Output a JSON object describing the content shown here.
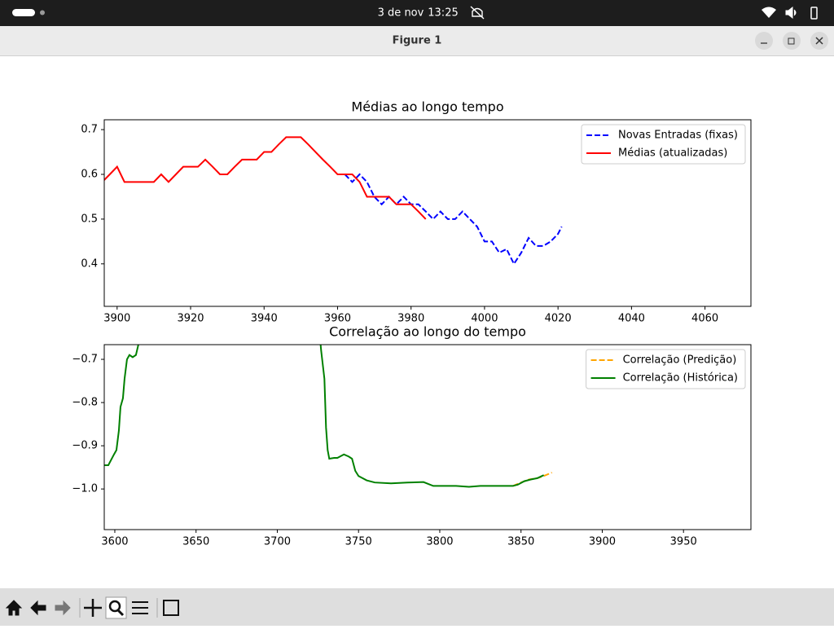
{
  "screen": {
    "topbar": {
      "date": "3 de nov",
      "time": "13:25"
    },
    "window": {
      "title": "Figure 1"
    }
  },
  "chart_data": [
    {
      "type": "line",
      "title": "Médias ao longo tempo",
      "xlim": [
        3896.5,
        4072.5
      ],
      "xticks": [
        3900,
        3920,
        3940,
        3960,
        3980,
        4000,
        4020,
        4040,
        4060
      ],
      "ylim": [
        0.305,
        0.722
      ],
      "yticks": [
        0.4,
        0.5,
        0.6,
        0.7
      ],
      "legend": "upper right",
      "series": [
        {
          "name": "Novas Entradas (fixas)",
          "color": "#0000ff",
          "linestyle": "dashed",
          "x": [
            3962,
            3964,
            3966,
            3968,
            3970,
            3972,
            3974,
            3976,
            3978,
            3980,
            3982,
            3984,
            3986,
            3988,
            3990,
            3992,
            3994,
            3996,
            3998,
            4000,
            4002,
            4004,
            4006,
            4008,
            4010,
            4012,
            4014,
            4016,
            4018,
            4020,
            4021
          ],
          "values": [
            0.6,
            0.583,
            0.6,
            0.583,
            0.55,
            0.533,
            0.55,
            0.533,
            0.55,
            0.533,
            0.533,
            0.517,
            0.5,
            0.517,
            0.5,
            0.5,
            0.517,
            0.5,
            0.483,
            0.45,
            0.45,
            0.425,
            0.433,
            0.4,
            0.425,
            0.458,
            0.44,
            0.44,
            0.45,
            0.467,
            0.483
          ]
        },
        {
          "name": "Médias (atualizadas)",
          "color": "#ff0000",
          "linestyle": "solid",
          "x": [
            3896,
            3898,
            3900,
            3902,
            3904,
            3906,
            3908,
            3910,
            3912,
            3914,
            3916,
            3918,
            3920,
            3922,
            3924,
            3926,
            3928,
            3930,
            3932,
            3934,
            3936,
            3938,
            3940,
            3942,
            3944,
            3946,
            3948,
            3950,
            3952,
            3954,
            3956,
            3958,
            3960,
            3962,
            3964,
            3966,
            3968,
            3970,
            3972,
            3974,
            3976,
            3978,
            3980,
            3982,
            3984
          ],
          "values": [
            0.583,
            0.6,
            0.617,
            0.583,
            0.583,
            0.583,
            0.583,
            0.583,
            0.6,
            0.583,
            0.6,
            0.617,
            0.617,
            0.617,
            0.633,
            0.617,
            0.6,
            0.6,
            0.617,
            0.633,
            0.633,
            0.633,
            0.65,
            0.65,
            0.667,
            0.683,
            0.683,
            0.683,
            0.667,
            0.65,
            0.633,
            0.617,
            0.6,
            0.6,
            0.6,
            0.583,
            0.55,
            0.55,
            0.55,
            0.55,
            0.533,
            0.533,
            0.533,
            0.517,
            0.5
          ]
        }
      ]
    },
    {
      "type": "line",
      "title": "Correlação ao longo do tempo",
      "xlim": [
        3593.5,
        3991.5
      ],
      "xticks": [
        3600,
        3650,
        3700,
        3750,
        3800,
        3850,
        3900,
        3950
      ],
      "ylim": [
        -1.094,
        -0.666
      ],
      "yticks": [
        {
          "value": -1.0,
          "label": "−1.0"
        },
        {
          "value": -0.9,
          "label": "−0.9"
        },
        {
          "value": -0.8,
          "label": "−0.8"
        },
        {
          "value": -0.7,
          "label": "−0.7"
        }
      ],
      "legend": "upper right",
      "series": [
        {
          "name": "Correlação (Predição)",
          "color": "#ffa500",
          "linestyle": "dashed",
          "x": [
            3845,
            3850,
            3855,
            3860,
            3864,
            3869
          ],
          "values": [
            -0.993,
            -0.985,
            -0.978,
            -0.975,
            -0.97,
            -0.962
          ]
        },
        {
          "name": "Correlação (Histórica)",
          "color": "#008000",
          "linestyle": "solid",
          "x": [
            3593.5,
            3596,
            3599.5,
            3601,
            3602.5,
            3603.5,
            3605,
            3606,
            3607.5,
            3609,
            3611,
            3613,
            3614.5,
            3616,
            3725,
            3727,
            3729,
            3730,
            3731,
            3732,
            3735,
            3737,
            3741,
            3744,
            3746,
            3748,
            3750,
            3755,
            3760,
            3770,
            3780,
            3790,
            3796,
            3800,
            3810,
            3818,
            3825,
            3830,
            3840,
            3845,
            3848,
            3852,
            3856,
            3860,
            3864
          ],
          "values": [
            -0.945,
            -0.945,
            -0.92,
            -0.91,
            -0.865,
            -0.81,
            -0.79,
            -0.745,
            -0.7,
            -0.69,
            -0.695,
            -0.69,
            -0.666,
            -0.6,
            -0.6,
            -0.68,
            -0.745,
            -0.858,
            -0.91,
            -0.93,
            -0.928,
            -0.928,
            -0.92,
            -0.925,
            -0.93,
            -0.958,
            -0.97,
            -0.98,
            -0.985,
            -0.987,
            -0.985,
            -0.984,
            -0.993,
            -0.993,
            -0.993,
            -0.995,
            -0.993,
            -0.993,
            -0.993,
            -0.993,
            -0.99,
            -0.982,
            -0.978,
            -0.975,
            -0.968
          ]
        }
      ]
    }
  ]
}
